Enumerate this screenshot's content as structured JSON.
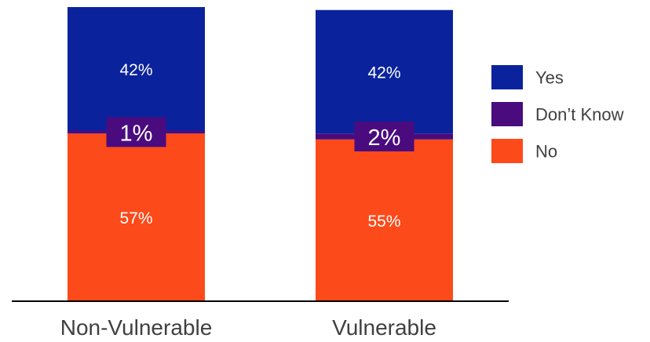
{
  "chart_data": {
    "type": "bar",
    "stacked": true,
    "categories": [
      "Non-Vulnerable",
      "Vulnerable"
    ],
    "series": [
      {
        "name": "No",
        "values": [
          57,
          55
        ],
        "labels": [
          "57%",
          "55%"
        ]
      },
      {
        "name": "Don’t Know",
        "values": [
          1,
          2
        ],
        "labels": [
          "1%",
          "2%"
        ]
      },
      {
        "name": "Yes",
        "values": [
          42,
          42
        ],
        "labels": [
          "42%",
          "42%"
        ]
      }
    ],
    "legend": [
      "Yes",
      "Don’t Know",
      "No"
    ],
    "legend_position": "right",
    "ylim": [
      0,
      100
    ],
    "grid": false,
    "colors": {
      "No": "#FC4A1A",
      "Don’t Know": "#4A0B7E",
      "Yes": "#0A239C"
    }
  }
}
